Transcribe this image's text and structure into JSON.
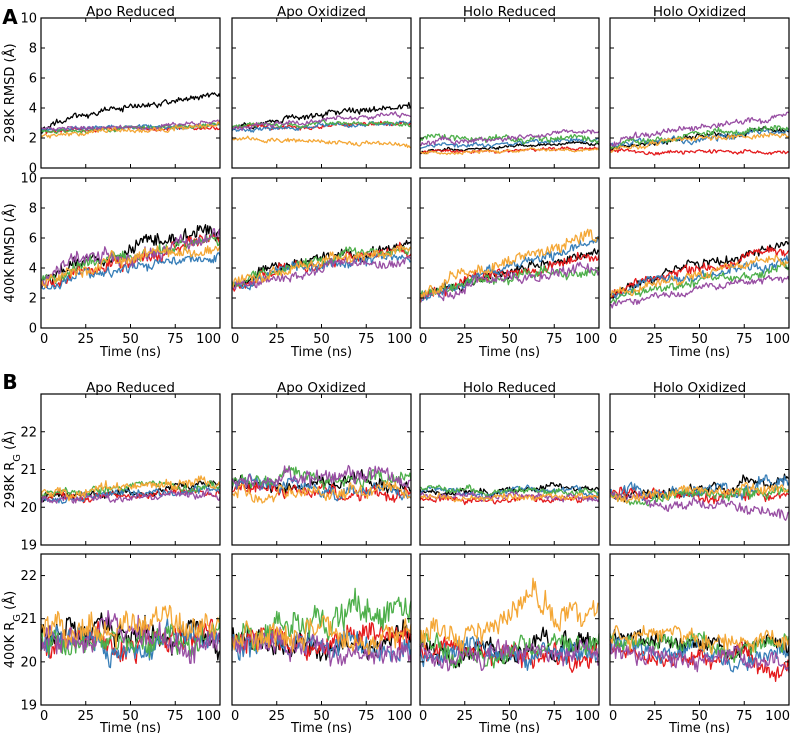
{
  "figure": {
    "type": "line",
    "colors": {
      "run1": "#000000",
      "run2": "#e41a1c",
      "run3": "#377eb8",
      "run4": "#4daf4a",
      "run5": "#984ea3",
      "run6": "#f4a736"
    }
  },
  "chart_data": [
    {
      "section": "A",
      "type": "line",
      "column_titles": [
        "Apo Reduced",
        "Apo Oxidized",
        "Holo Reduced",
        "Holo Oxidized"
      ],
      "xlabel": "Time (ns)",
      "xlim": [
        0,
        100
      ],
      "xticks": [
        "0",
        "25",
        "50",
        "75",
        "100"
      ],
      "rows": [
        {
          "ylabel_prefix": "298K RMSD",
          "ylabel_unit": "(Å)",
          "ylabel_sub": "",
          "ylim": [
            0,
            10
          ],
          "yticks": [
            "0",
            "2",
            "4",
            "6",
            "8",
            "10"
          ],
          "panels": [
            {
              "series": [
                {
                  "color": "#000000",
                  "start": 2.4,
                  "end": 5.0,
                  "noise": 0.3
                },
                {
                  "color": "#e41a1c",
                  "start": 2.5,
                  "end": 2.7,
                  "noise": 0.2
                },
                {
                  "color": "#377eb8",
                  "start": 2.5,
                  "end": 2.9,
                  "noise": 0.2
                },
                {
                  "color": "#4daf4a",
                  "start": 2.4,
                  "end": 2.8,
                  "noise": 0.2
                },
                {
                  "color": "#984ea3",
                  "start": 2.5,
                  "end": 3.0,
                  "noise": 0.2
                },
                {
                  "color": "#f4a736",
                  "start": 2.0,
                  "end": 3.0,
                  "noise": 0.25
                }
              ]
            },
            {
              "series": [
                {
                  "color": "#000000",
                  "start": 2.5,
                  "end": 4.2,
                  "noise": 0.3
                },
                {
                  "color": "#e41a1c",
                  "start": 2.6,
                  "end": 3.0,
                  "noise": 0.2
                },
                {
                  "color": "#377eb8",
                  "start": 2.5,
                  "end": 3.1,
                  "noise": 0.2
                },
                {
                  "color": "#4daf4a",
                  "start": 2.8,
                  "end": 3.0,
                  "noise": 0.2
                },
                {
                  "color": "#984ea3",
                  "start": 2.6,
                  "end": 3.5,
                  "noise": 0.25
                },
                {
                  "color": "#f4a736",
                  "start": 2.0,
                  "end": 1.6,
                  "noise": 0.2
                }
              ]
            },
            {
              "series": [
                {
                  "color": "#000000",
                  "start": 1.0,
                  "end": 1.6,
                  "noise": 0.15
                },
                {
                  "color": "#e41a1c",
                  "start": 1.0,
                  "end": 1.3,
                  "noise": 0.15
                },
                {
                  "color": "#377eb8",
                  "start": 1.3,
                  "end": 1.9,
                  "noise": 0.2
                },
                {
                  "color": "#4daf4a",
                  "start": 1.8,
                  "end": 2.0,
                  "noise": 0.3
                },
                {
                  "color": "#984ea3",
                  "start": 1.5,
                  "end": 2.4,
                  "noise": 0.25
                },
                {
                  "color": "#f4a736",
                  "start": 1.0,
                  "end": 1.2,
                  "noise": 0.15
                }
              ]
            },
            {
              "series": [
                {
                  "color": "#000000",
                  "start": 1.1,
                  "end": 2.6,
                  "noise": 0.25
                },
                {
                  "color": "#e41a1c",
                  "start": 1.2,
                  "end": 1.1,
                  "noise": 0.2
                },
                {
                  "color": "#377eb8",
                  "start": 1.4,
                  "end": 2.5,
                  "noise": 0.3
                },
                {
                  "color": "#4daf4a",
                  "start": 1.3,
                  "end": 2.8,
                  "noise": 0.3
                },
                {
                  "color": "#984ea3",
                  "start": 1.5,
                  "end": 3.4,
                  "noise": 0.3
                },
                {
                  "color": "#f4a736",
                  "start": 1.1,
                  "end": 2.3,
                  "noise": 0.25
                }
              ]
            }
          ]
        },
        {
          "ylabel_prefix": "400K RMSD",
          "ylabel_unit": "(Å)",
          "ylabel_sub": "",
          "ylim": [
            0,
            10
          ],
          "yticks": [
            "0",
            "2",
            "4",
            "6",
            "8",
            "10"
          ],
          "panels": [
            {
              "series": [
                {
                  "color": "#000000",
                  "start": 3.0,
                  "end": 7.0,
                  "noise": 0.7
                },
                {
                  "color": "#e41a1c",
                  "start": 3.0,
                  "end": 5.5,
                  "noise": 0.6
                },
                {
                  "color": "#377eb8",
                  "start": 3.0,
                  "end": 4.7,
                  "noise": 0.5
                },
                {
                  "color": "#4daf4a",
                  "start": 3.0,
                  "end": 5.8,
                  "noise": 0.6
                },
                {
                  "color": "#984ea3",
                  "start": 3.0,
                  "end": 6.0,
                  "noise": 0.7
                },
                {
                  "color": "#f4a736",
                  "start": 3.0,
                  "end": 5.2,
                  "noise": 0.6
                }
              ]
            },
            {
              "series": [
                {
                  "color": "#000000",
                  "start": 2.8,
                  "end": 5.5,
                  "noise": 0.5
                },
                {
                  "color": "#e41a1c",
                  "start": 2.8,
                  "end": 5.0,
                  "noise": 0.5
                },
                {
                  "color": "#377eb8",
                  "start": 2.9,
                  "end": 4.8,
                  "noise": 0.5
                },
                {
                  "color": "#4daf4a",
                  "start": 3.0,
                  "end": 5.6,
                  "noise": 0.5
                },
                {
                  "color": "#984ea3",
                  "start": 2.8,
                  "end": 4.5,
                  "noise": 0.5
                },
                {
                  "color": "#f4a736",
                  "start": 3.0,
                  "end": 5.2,
                  "noise": 0.5
                }
              ]
            },
            {
              "series": [
                {
                  "color": "#000000",
                  "start": 2.0,
                  "end": 5.0,
                  "noise": 0.5
                },
                {
                  "color": "#e41a1c",
                  "start": 2.0,
                  "end": 4.5,
                  "noise": 0.5
                },
                {
                  "color": "#377eb8",
                  "start": 1.8,
                  "end": 5.5,
                  "noise": 0.5
                },
                {
                  "color": "#4daf4a",
                  "start": 2.0,
                  "end": 4.0,
                  "noise": 0.5
                },
                {
                  "color": "#984ea3",
                  "start": 1.8,
                  "end": 4.3,
                  "noise": 0.5
                },
                {
                  "color": "#f4a736",
                  "start": 2.0,
                  "end": 6.2,
                  "noise": 0.6
                }
              ]
            },
            {
              "series": [
                {
                  "color": "#000000",
                  "start": 2.0,
                  "end": 5.5,
                  "noise": 0.45
                },
                {
                  "color": "#e41a1c",
                  "start": 2.2,
                  "end": 5.0,
                  "noise": 0.45
                },
                {
                  "color": "#377eb8",
                  "start": 2.0,
                  "end": 4.5,
                  "noise": 0.45
                },
                {
                  "color": "#4daf4a",
                  "start": 1.8,
                  "end": 4.0,
                  "noise": 0.45
                },
                {
                  "color": "#984ea3",
                  "start": 1.5,
                  "end": 3.3,
                  "noise": 0.35
                },
                {
                  "color": "#f4a736",
                  "start": 2.0,
                  "end": 4.6,
                  "noise": 0.45
                }
              ]
            }
          ]
        }
      ]
    },
    {
      "section": "B",
      "type": "line",
      "column_titles": [
        "Apo Reduced",
        "Apo Oxidized",
        "Holo Reduced",
        "Holo Oxidized"
      ],
      "xlabel": "Time (ns)",
      "xlim": [
        0,
        100
      ],
      "xticks": [
        "0",
        "25",
        "50",
        "75",
        "100"
      ],
      "rows": [
        {
          "ylabel_prefix": "298K R",
          "ylabel_unit": "(Å)",
          "ylabel_sub": "G",
          "ylim": [
            19,
            23
          ],
          "yticks": [
            "19",
            "20",
            "21",
            "22"
          ],
          "panels": [
            {
              "series": [
                {
                  "color": "#000000",
                  "start": 20.2,
                  "end": 20.6,
                  "noise": 0.15
                },
                {
                  "color": "#e41a1c",
                  "start": 20.2,
                  "end": 20.4,
                  "noise": 0.15
                },
                {
                  "color": "#377eb8",
                  "start": 20.2,
                  "end": 20.4,
                  "noise": 0.15
                },
                {
                  "color": "#4daf4a",
                  "start": 20.3,
                  "end": 20.6,
                  "noise": 0.15
                },
                {
                  "color": "#984ea3",
                  "start": 20.2,
                  "end": 20.3,
                  "noise": 0.15
                },
                {
                  "color": "#f4a736",
                  "start": 20.3,
                  "end": 20.6,
                  "noise": 0.2
                }
              ]
            },
            {
              "series": [
                {
                  "color": "#000000",
                  "start": 20.5,
                  "end": 20.6,
                  "noise": 0.25
                },
                {
                  "color": "#e41a1c",
                  "start": 20.4,
                  "end": 20.4,
                  "noise": 0.25
                },
                {
                  "color": "#377eb8",
                  "start": 20.5,
                  "end": 20.5,
                  "noise": 0.25
                },
                {
                  "color": "#4daf4a",
                  "start": 20.6,
                  "end": 20.7,
                  "noise": 0.25
                },
                {
                  "color": "#984ea3",
                  "start": 20.6,
                  "end": 20.8,
                  "noise": 0.3
                },
                {
                  "color": "#f4a736",
                  "start": 20.4,
                  "end": 20.3,
                  "noise": 0.25
                }
              ]
            },
            {
              "series": [
                {
                  "color": "#000000",
                  "start": 20.4,
                  "end": 20.5,
                  "noise": 0.12
                },
                {
                  "color": "#e41a1c",
                  "start": 20.2,
                  "end": 20.2,
                  "noise": 0.12
                },
                {
                  "color": "#377eb8",
                  "start": 20.4,
                  "end": 20.4,
                  "noise": 0.12
                },
                {
                  "color": "#4daf4a",
                  "start": 20.5,
                  "end": 20.4,
                  "noise": 0.12
                },
                {
                  "color": "#984ea3",
                  "start": 20.3,
                  "end": 20.3,
                  "noise": 0.12
                },
                {
                  "color": "#f4a736",
                  "start": 20.2,
                  "end": 20.2,
                  "noise": 0.12
                }
              ]
            },
            {
              "series": [
                {
                  "color": "#000000",
                  "start": 20.2,
                  "end": 20.7,
                  "noise": 0.2
                },
                {
                  "color": "#e41a1c",
                  "start": 20.3,
                  "end": 20.3,
                  "noise": 0.2
                },
                {
                  "color": "#377eb8",
                  "start": 20.3,
                  "end": 20.6,
                  "noise": 0.25
                },
                {
                  "color": "#4daf4a",
                  "start": 20.3,
                  "end": 20.4,
                  "noise": 0.2
                },
                {
                  "color": "#984ea3",
                  "start": 20.3,
                  "end": 19.9,
                  "noise": 0.2
                },
                {
                  "color": "#f4a736",
                  "start": 20.3,
                  "end": 20.4,
                  "noise": 0.2
                }
              ]
            }
          ]
        },
        {
          "ylabel_prefix": "400K R",
          "ylabel_unit": "(Å)",
          "ylabel_sub": "G",
          "ylim": [
            19,
            22.5
          ],
          "yticks": [
            "19",
            "20",
            "21",
            "22"
          ],
          "panels": [
            {
              "series": [
                {
                  "color": "#000000",
                  "start": 20.8,
                  "end": 20.6,
                  "noise": 0.4
                },
                {
                  "color": "#e41a1c",
                  "start": 20.5,
                  "end": 20.5,
                  "noise": 0.4
                },
                {
                  "color": "#377eb8",
                  "start": 20.5,
                  "end": 20.4,
                  "noise": 0.4
                },
                {
                  "color": "#4daf4a",
                  "start": 20.7,
                  "end": 20.4,
                  "noise": 0.45
                },
                {
                  "color": "#984ea3",
                  "start": 20.6,
                  "end": 20.5,
                  "noise": 0.45
                },
                {
                  "color": "#f4a736",
                  "start": 20.7,
                  "end": 20.8,
                  "noise": 0.45
                }
              ]
            },
            {
              "series": [
                {
                  "color": "#000000",
                  "start": 20.6,
                  "end": 20.4,
                  "noise": 0.4
                },
                {
                  "color": "#e41a1c",
                  "start": 20.5,
                  "end": 20.5,
                  "noise": 0.4
                },
                {
                  "color": "#377eb8",
                  "start": 20.5,
                  "end": 20.4,
                  "noise": 0.4
                },
                {
                  "color": "#4daf4a",
                  "start": 20.6,
                  "end": 21.2,
                  "noise": 0.5
                },
                {
                  "color": "#984ea3",
                  "start": 20.5,
                  "end": 20.3,
                  "noise": 0.4
                },
                {
                  "color": "#f4a736",
                  "start": 20.6,
                  "end": 20.6,
                  "noise": 0.45
                }
              ]
            },
            {
              "series": [
                {
                  "color": "#000000",
                  "start": 20.4,
                  "end": 20.3,
                  "noise": 0.35
                },
                {
                  "color": "#e41a1c",
                  "start": 20.3,
                  "end": 20.2,
                  "noise": 0.35
                },
                {
                  "color": "#377eb8",
                  "start": 20.3,
                  "end": 20.0,
                  "noise": 0.35
                },
                {
                  "color": "#4daf4a",
                  "start": 20.4,
                  "end": 20.3,
                  "noise": 0.35
                },
                {
                  "color": "#984ea3",
                  "start": 20.3,
                  "end": 20.2,
                  "noise": 0.35
                },
                {
                  "color": "#f4a736",
                  "start": 20.5,
                  "end": 21.2,
                  "noise": 0.45
                }
              ]
            },
            {
              "series": [
                {
                  "color": "#000000",
                  "start": 20.6,
                  "end": 20.4,
                  "noise": 0.3
                },
                {
                  "color": "#e41a1c",
                  "start": 20.5,
                  "end": 20.0,
                  "noise": 0.3
                },
                {
                  "color": "#377eb8",
                  "start": 20.4,
                  "end": 20.1,
                  "noise": 0.3
                },
                {
                  "color": "#4daf4a",
                  "start": 20.6,
                  "end": 20.5,
                  "noise": 0.3
                },
                {
                  "color": "#984ea3",
                  "start": 20.4,
                  "end": 20.0,
                  "noise": 0.3
                },
                {
                  "color": "#f4a736",
                  "start": 20.6,
                  "end": 20.5,
                  "noise": 0.3
                }
              ]
            }
          ]
        }
      ]
    }
  ]
}
